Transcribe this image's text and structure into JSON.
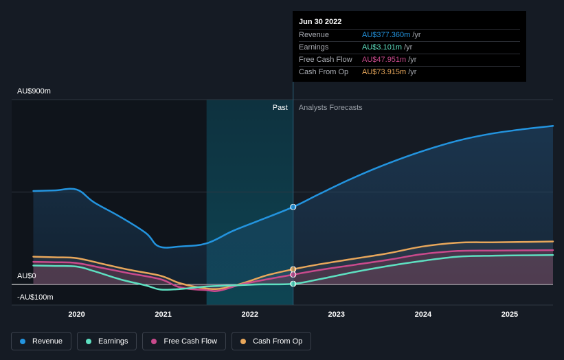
{
  "chart_data": {
    "type": "area",
    "title": "",
    "xlabel": "",
    "ylabel": "",
    "ylim": [
      -100,
      900
    ],
    "y_ticks": [
      {
        "value": 900,
        "label": "AU$900m"
      },
      {
        "value": 0,
        "label": "AU$0"
      },
      {
        "value": -100,
        "label": "-AU$100m"
      }
    ],
    "x_ticks": [
      {
        "value": 2020.0,
        "label": "2020"
      },
      {
        "value": 2021.0,
        "label": "2021"
      },
      {
        "value": 2022.0,
        "label": "2022"
      },
      {
        "value": 2023.0,
        "label": "2023"
      },
      {
        "value": 2024.0,
        "label": "2024"
      },
      {
        "value": 2025.0,
        "label": "2025"
      }
    ],
    "xlim": [
      2019.25,
      2025.5
    ],
    "past_label": "Past",
    "forecast_label": "Analysts Forecasts",
    "divider_x": 2022.5,
    "highlight_start_x": 2021.5,
    "grid": true,
    "legend_position": "bottom-left",
    "series": [
      {
        "name": "Revenue",
        "color": "#2394df",
        "points": [
          [
            2019.5,
            455
          ],
          [
            2019.75,
            458
          ],
          [
            2020.0,
            462
          ],
          [
            2020.2,
            400
          ],
          [
            2020.5,
            330
          ],
          [
            2020.8,
            250
          ],
          [
            2020.95,
            185
          ],
          [
            2021.2,
            185
          ],
          [
            2021.5,
            200
          ],
          [
            2021.8,
            260
          ],
          [
            2022.1,
            310
          ],
          [
            2022.5,
            377.36
          ],
          [
            2022.8,
            440
          ],
          [
            2023.2,
            520
          ],
          [
            2023.6,
            590
          ],
          [
            2024.0,
            650
          ],
          [
            2024.4,
            700
          ],
          [
            2024.8,
            735
          ],
          [
            2025.2,
            758
          ],
          [
            2025.5,
            772
          ]
        ]
      },
      {
        "name": "Earnings",
        "color": "#5ee0c1",
        "points": [
          [
            2019.5,
            92
          ],
          [
            2019.75,
            90
          ],
          [
            2020.0,
            87
          ],
          [
            2020.2,
            65
          ],
          [
            2020.5,
            25
          ],
          [
            2020.8,
            -5
          ],
          [
            2020.97,
            -25
          ],
          [
            2021.2,
            -22
          ],
          [
            2021.5,
            -10
          ],
          [
            2021.8,
            -5
          ],
          [
            2022.1,
            0
          ],
          [
            2022.5,
            3.1
          ],
          [
            2022.8,
            25
          ],
          [
            2023.2,
            60
          ],
          [
            2023.6,
            90
          ],
          [
            2024.0,
            115
          ],
          [
            2024.4,
            135
          ],
          [
            2024.8,
            140
          ],
          [
            2025.2,
            142
          ],
          [
            2025.5,
            143
          ]
        ]
      },
      {
        "name": "Free Cash Flow",
        "color": "#c94a8c",
        "points": [
          [
            2019.5,
            110
          ],
          [
            2019.75,
            108
          ],
          [
            2020.0,
            104
          ],
          [
            2020.3,
            80
          ],
          [
            2020.6,
            55
          ],
          [
            2020.97,
            25
          ],
          [
            2021.2,
            -15
          ],
          [
            2021.5,
            -28
          ],
          [
            2021.65,
            -30
          ],
          [
            2021.9,
            0
          ],
          [
            2022.2,
            25
          ],
          [
            2022.5,
            47.95
          ],
          [
            2022.8,
            70
          ],
          [
            2023.2,
            95
          ],
          [
            2023.6,
            120
          ],
          [
            2024.0,
            148
          ],
          [
            2024.4,
            163
          ],
          [
            2024.8,
            165
          ],
          [
            2025.2,
            166
          ],
          [
            2025.5,
            167
          ]
        ]
      },
      {
        "name": "Cash From Op",
        "color": "#e8a75b",
        "points": [
          [
            2019.5,
            135
          ],
          [
            2019.75,
            132
          ],
          [
            2020.0,
            128
          ],
          [
            2020.3,
            100
          ],
          [
            2020.6,
            72
          ],
          [
            2020.97,
            42
          ],
          [
            2021.2,
            5
          ],
          [
            2021.5,
            -20
          ],
          [
            2021.7,
            -18
          ],
          [
            2021.95,
            10
          ],
          [
            2022.2,
            45
          ],
          [
            2022.5,
            73.9
          ],
          [
            2022.8,
            98
          ],
          [
            2023.2,
            125
          ],
          [
            2023.6,
            152
          ],
          [
            2024.0,
            185
          ],
          [
            2024.4,
            203
          ],
          [
            2024.8,
            205
          ],
          [
            2025.2,
            207
          ],
          [
            2025.5,
            209
          ]
        ]
      }
    ]
  },
  "tooltip": {
    "date": "Jun 30 2022",
    "rows": [
      {
        "label": "Revenue",
        "value": "AU$377.360m",
        "unit": "/yr",
        "color": "#2394df"
      },
      {
        "label": "Earnings",
        "value": "AU$3.101m",
        "unit": "/yr",
        "color": "#5ee0c1"
      },
      {
        "label": "Free Cash Flow",
        "value": "AU$47.951m",
        "unit": "/yr",
        "color": "#c94a8c"
      },
      {
        "label": "Cash From Op",
        "value": "AU$73.915m",
        "unit": "/yr",
        "color": "#e8a75b"
      }
    ]
  },
  "legend": [
    {
      "label": "Revenue",
      "color": "#2394df"
    },
    {
      "label": "Earnings",
      "color": "#5ee0c1"
    },
    {
      "label": "Free Cash Flow",
      "color": "#c94a8c"
    },
    {
      "label": "Cash From Op",
      "color": "#e8a75b"
    }
  ]
}
